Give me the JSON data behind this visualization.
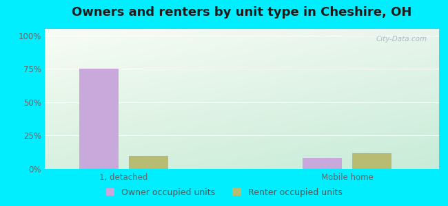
{
  "title": "Owners and renters by unit type in Cheshire, OH",
  "categories": [
    "1, detached",
    "Mobile home"
  ],
  "owner_values": [
    75,
    8
  ],
  "renter_values": [
    10,
    12
  ],
  "owner_color": "#c9a8dc",
  "renter_color": "#b8bc72",
  "yticks": [
    0,
    25,
    50,
    75,
    100
  ],
  "ytick_labels": [
    "0%",
    "25%",
    "50%",
    "75%",
    "100%"
  ],
  "ylim": [
    0,
    105
  ],
  "bar_width": 0.3,
  "background_outer": "#00eeff",
  "legend_owner": "Owner occupied units",
  "legend_renter": "Renter occupied units",
  "watermark": "City-Data.com",
  "title_fontsize": 13,
  "tick_fontsize": 8.5,
  "legend_fontsize": 9,
  "group_positions": [
    0.5,
    2.2
  ]
}
